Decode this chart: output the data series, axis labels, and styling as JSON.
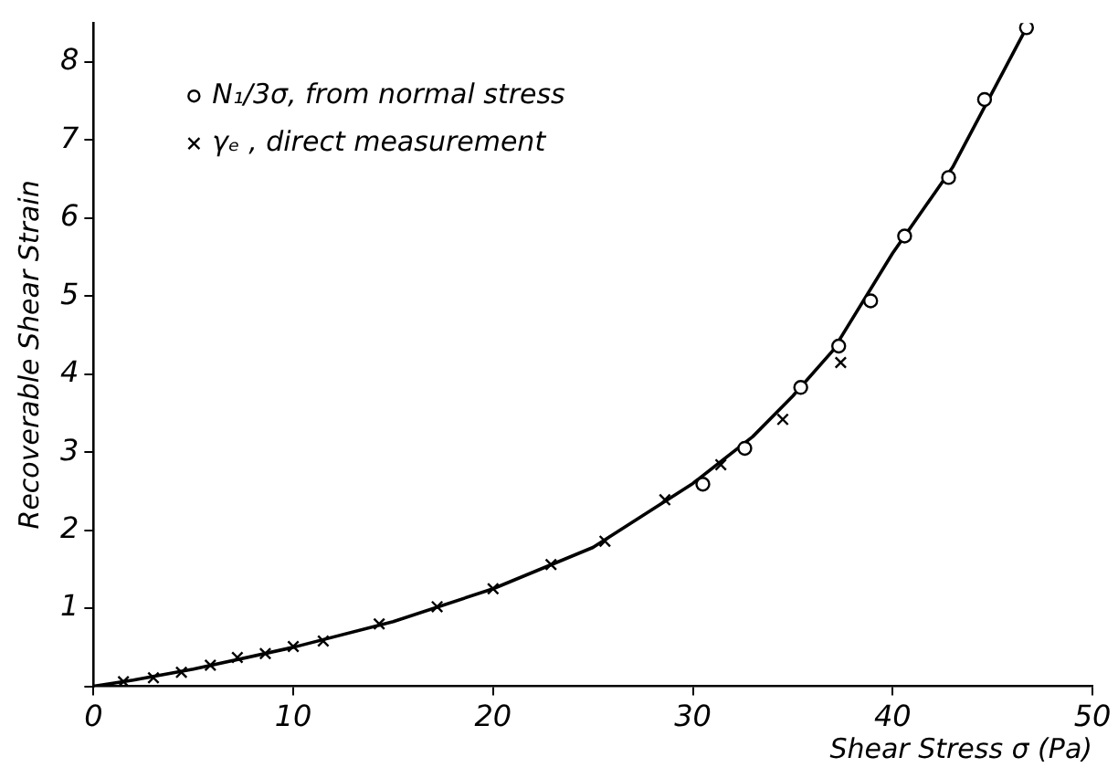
{
  "chart_data": {
    "type": "scatter",
    "xlabel": "Shear Stress σ (Pa)",
    "ylabel": "Recoverable Shear Strain",
    "xlim": [
      0,
      50
    ],
    "xticks": [
      0,
      10,
      20,
      30,
      40,
      50
    ],
    "ylim": [
      0,
      8.5
    ],
    "yticks": [
      {
        "value": 0,
        "label": null
      },
      1,
      2,
      3,
      4,
      5,
      6,
      7,
      8
    ],
    "grid": false,
    "legend": "top left",
    "series": [
      {
        "name": "N₁/3σ, from normal stress",
        "color": "#000000",
        "marker": "circle",
        "x": [
          30.5,
          32.6,
          35.4,
          37.3,
          38.9,
          40.6,
          42.8,
          44.6,
          46.7
        ],
        "values": [
          2.59,
          3.05,
          3.83,
          4.36,
          4.94,
          5.77,
          6.52,
          7.52,
          8.44
        ]
      },
      {
        "name": "γₑ , direct measurement",
        "color": "#000000",
        "marker": "cross",
        "x": [
          1.5,
          3.0,
          4.4,
          5.85,
          7.2,
          8.6,
          10.0,
          11.5,
          14.3,
          17.2,
          20.0,
          22.9,
          25.6,
          28.6,
          31.4,
          34.5,
          37.4
        ],
        "values": [
          0.06,
          0.11,
          0.18,
          0.27,
          0.37,
          0.42,
          0.51,
          0.58,
          0.8,
          1.02,
          1.25,
          1.56,
          1.86,
          2.39,
          2.84,
          3.42,
          4.15
        ]
      },
      {
        "type": "line",
        "color": "#000000",
        "marker": "none",
        "line_style": "solid",
        "x": [
          0,
          2,
          5,
          10,
          15,
          20,
          25,
          30,
          33,
          35,
          37,
          40,
          43,
          46.7
        ],
        "values": [
          0,
          0.08,
          0.22,
          0.5,
          0.83,
          1.25,
          1.78,
          2.6,
          3.2,
          3.72,
          4.3,
          5.55,
          6.65,
          8.44
        ]
      }
    ]
  }
}
